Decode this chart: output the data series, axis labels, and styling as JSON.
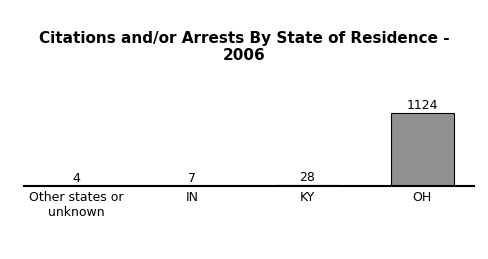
{
  "categories": [
    "Other states or\nunknown",
    "IN",
    "KY",
    "OH"
  ],
  "values": [
    4,
    7,
    28,
    1124
  ],
  "bar_color": "#909090",
  "title_line1": "Citations and/or Arrests By State of Residence -",
  "title_line2": "2006",
  "title_fontsize": 11,
  "label_fontsize": 9,
  "value_fontsize": 9,
  "background_color": "#ffffff",
  "ylim": [
    0,
    1350
  ],
  "bar_width": 0.55
}
